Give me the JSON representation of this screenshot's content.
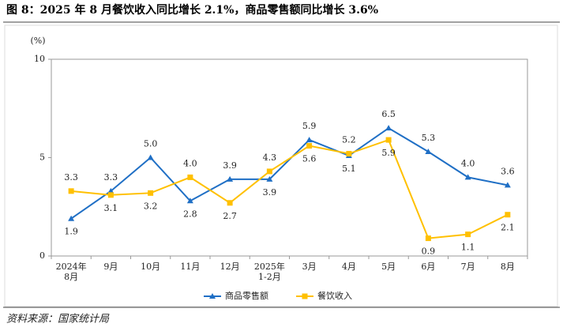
{
  "chart_data": {
    "type": "line",
    "title": "图 8：2025 年 8 月餐饮收入同比增长 2.1%，商品零售额同比增长 3.6%",
    "y_unit": "(%)",
    "source": "资料来源：国家统计局",
    "categories": [
      "2024年\n8月",
      "9月",
      "10月",
      "11月",
      "12月",
      "2025年\n1-2月",
      "3月",
      "4月",
      "5月",
      "6月",
      "7月",
      "8月"
    ],
    "series": [
      {
        "name": "商品零售额",
        "color": "#1f6fc5",
        "marker": "triangle",
        "values": [
          1.9,
          3.3,
          5.0,
          2.8,
          3.9,
          3.9,
          5.9,
          5.1,
          6.5,
          5.3,
          4.0,
          3.6
        ],
        "value_labels": [
          "1.9",
          "3.3",
          "5.0",
          "2.8",
          "3.9",
          "3.9",
          "5.9",
          "5.1",
          "6.5",
          "5.3",
          "4.0",
          "3.6"
        ]
      },
      {
        "name": "餐饮收入",
        "color": "#ffc000",
        "marker": "square",
        "values": [
          3.3,
          3.1,
          3.2,
          4.0,
          2.7,
          4.3,
          5.6,
          5.2,
          5.9,
          0.9,
          1.1,
          2.1
        ],
        "value_labels": [
          "3.3",
          "3.1",
          "3.2",
          "4.0",
          "2.7",
          "4.3",
          "5.6",
          "5.2",
          "5.9",
          "0.9",
          "1.1",
          "2.1"
        ]
      }
    ],
    "ylim": [
      0,
      10
    ],
    "yticks": [
      0,
      5,
      10
    ],
    "legend": "bottom"
  }
}
